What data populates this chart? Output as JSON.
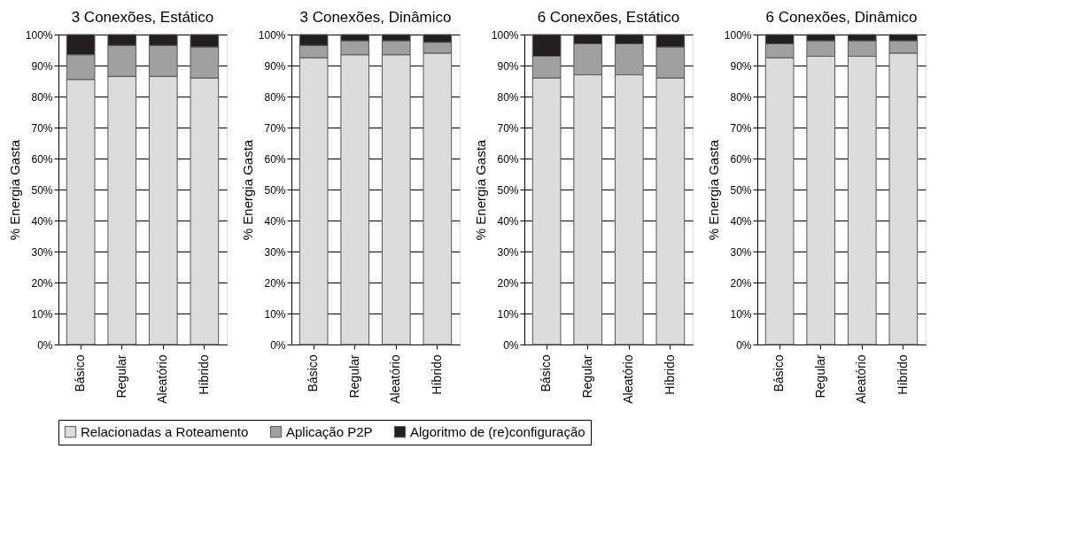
{
  "chart_data": [
    {
      "type": "bar",
      "stacked": true,
      "title": "3 Conexões, Estático",
      "ylabel": "% Energia Gasta",
      "categories": [
        "Básico",
        "Regular",
        "Aleatório",
        "Híbrido"
      ],
      "grid": "y",
      "legend": "bottom",
      "ylim": [
        0,
        100
      ],
      "yticks": [
        {
          "value": 0,
          "label": "0%"
        },
        {
          "value": 10,
          "label": "10%"
        },
        {
          "value": 20,
          "label": "20%"
        },
        {
          "value": 30,
          "label": "30%"
        },
        {
          "value": 40,
          "label": "40%"
        },
        {
          "value": 50,
          "label": "50%"
        },
        {
          "value": 60,
          "label": "60%"
        },
        {
          "value": 70,
          "label": "70%"
        },
        {
          "value": 80,
          "label": "80%"
        },
        {
          "value": 90,
          "label": "90%"
        },
        {
          "value": 100,
          "label": "100%"
        }
      ],
      "series": [
        {
          "name": "Relacionadas a Roteamento",
          "color": "#dcdcdc",
          "values": [
            85.5,
            86.5,
            86.5,
            86
          ]
        },
        {
          "name": "Aplicação P2P",
          "color": "#a0a0a0",
          "values": [
            8,
            10,
            10,
            10
          ]
        },
        {
          "name": "Algoritmo de (re)configuração",
          "color": "#231f20",
          "values": [
            6.5,
            3.5,
            3.5,
            4
          ]
        }
      ]
    },
    {
      "type": "bar",
      "stacked": true,
      "title": "3 Conexões, Dinâmico",
      "ylabel": "% Energia Gasta",
      "categories": [
        "Básico",
        "Regular",
        "Aleatório",
        "Híbrido"
      ],
      "grid": "y",
      "legend": "bottom",
      "ylim": [
        0,
        100
      ],
      "yticks": [
        {
          "value": 0,
          "label": "0%"
        },
        {
          "value": 10,
          "label": "10%"
        },
        {
          "value": 20,
          "label": "20%"
        },
        {
          "value": 30,
          "label": "30%"
        },
        {
          "value": 40,
          "label": "40%"
        },
        {
          "value": 50,
          "label": "50%"
        },
        {
          "value": 60,
          "label": "60%"
        },
        {
          "value": 70,
          "label": "70%"
        },
        {
          "value": 80,
          "label": "80%"
        },
        {
          "value": 90,
          "label": "90%"
        },
        {
          "value": 100,
          "label": "100%"
        }
      ],
      "series": [
        {
          "name": "Relacionadas a Roteamento",
          "color": "#dcdcdc",
          "values": [
            92.5,
            93.5,
            93.5,
            94
          ]
        },
        {
          "name": "Aplicação P2P",
          "color": "#a0a0a0",
          "values": [
            4,
            4.5,
            4.5,
            3.5
          ]
        },
        {
          "name": "Algoritmo de (re)configuração",
          "color": "#231f20",
          "values": [
            3.5,
            2,
            2,
            2.5
          ]
        }
      ]
    },
    {
      "type": "bar",
      "stacked": true,
      "title": "6 Conexões, Estático",
      "ylabel": "% Energia Gasta",
      "categories": [
        "Básico",
        "Regular",
        "Aleatório",
        "Híbrido"
      ],
      "grid": "y",
      "legend": "bottom",
      "ylim": [
        0,
        100
      ],
      "yticks": [
        {
          "value": 0,
          "label": "0%"
        },
        {
          "value": 10,
          "label": "10%"
        },
        {
          "value": 20,
          "label": "20%"
        },
        {
          "value": 30,
          "label": "30%"
        },
        {
          "value": 40,
          "label": "40%"
        },
        {
          "value": 50,
          "label": "50%"
        },
        {
          "value": 60,
          "label": "60%"
        },
        {
          "value": 70,
          "label": "70%"
        },
        {
          "value": 80,
          "label": "80%"
        },
        {
          "value": 90,
          "label": "90%"
        },
        {
          "value": 100,
          "label": "100%"
        }
      ],
      "series": [
        {
          "name": "Relacionadas a Roteamento",
          "color": "#dcdcdc",
          "values": [
            86,
            87,
            87,
            86
          ]
        },
        {
          "name": "Aplicação P2P",
          "color": "#a0a0a0",
          "values": [
            7,
            10,
            10,
            10
          ]
        },
        {
          "name": "Algoritmo de (re)configuração",
          "color": "#231f20",
          "values": [
            7,
            3,
            3,
            4
          ]
        }
      ]
    },
    {
      "type": "bar",
      "stacked": true,
      "title": "6 Conexões, Dinâmico",
      "ylabel": "% Energia Gasta",
      "categories": [
        "Básico",
        "Regular",
        "Aleatório",
        "Híbrido"
      ],
      "grid": "y",
      "legend": "bottom",
      "ylim": [
        0,
        100
      ],
      "yticks": [
        {
          "value": 0,
          "label": "0%"
        },
        {
          "value": 10,
          "label": "10%"
        },
        {
          "value": 20,
          "label": "20%"
        },
        {
          "value": 30,
          "label": "30%"
        },
        {
          "value": 40,
          "label": "40%"
        },
        {
          "value": 50,
          "label": "50%"
        },
        {
          "value": 60,
          "label": "60%"
        },
        {
          "value": 70,
          "label": "70%"
        },
        {
          "value": 80,
          "label": "80%"
        },
        {
          "value": 90,
          "label": "90%"
        },
        {
          "value": 100,
          "label": "100%"
        }
      ],
      "series": [
        {
          "name": "Relacionadas a Roteamento",
          "color": "#dcdcdc",
          "values": [
            92.5,
            93,
            93,
            94
          ]
        },
        {
          "name": "Aplicação P2P",
          "color": "#a0a0a0",
          "values": [
            4.5,
            5,
            5,
            4
          ]
        },
        {
          "name": "Algoritmo de (re)configuração",
          "color": "#231f20",
          "values": [
            3,
            2,
            2,
            2
          ]
        }
      ]
    }
  ]
}
